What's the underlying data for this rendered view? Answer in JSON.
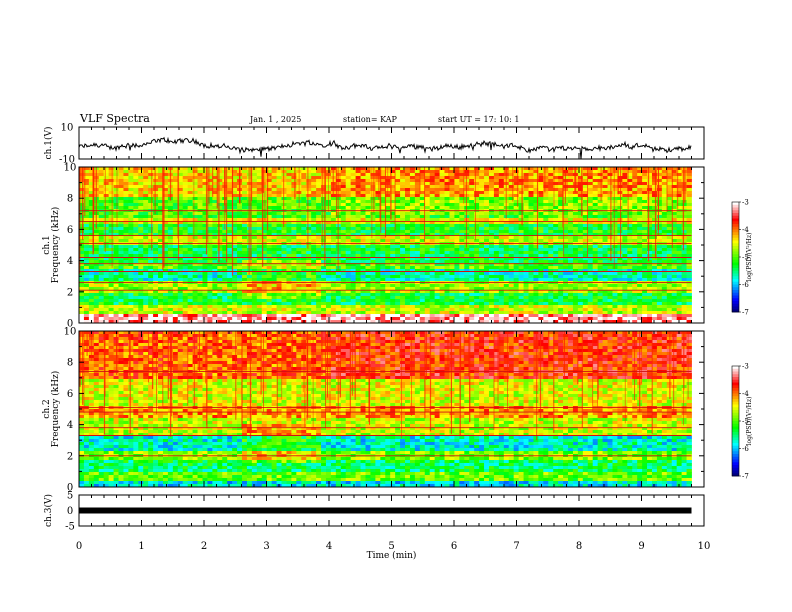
{
  "header": {
    "title": "VLF Spectra",
    "date": "Jan. 1 , 2025",
    "station": "station= KAP",
    "start": "start  UT =   17: 10: 1"
  },
  "chart_data": [
    {
      "type": "line",
      "name": "ch1-waveform",
      "ylabel": "ch.1(V)",
      "ylim": [
        -10,
        10
      ],
      "ytick_labels": [
        "10",
        "-10"
      ],
      "xlim": [
        0,
        10
      ],
      "note": "voltage trace, values roughly between -10 and 4 V"
    },
    {
      "type": "heatmap",
      "name": "ch1-spectrogram",
      "ylabel": "ch.1\nFrequency (kHz)",
      "ylabel_line1": "ch.1",
      "ylabel_line2": "Frequency (kHz)",
      "ylim": [
        0,
        10
      ],
      "ytick_labels": [
        "0",
        "2",
        "4",
        "6",
        "8",
        "10"
      ],
      "xlim": [
        0,
        10
      ],
      "data_end_min": 9.8,
      "colorbar": {
        "label": "log(PSD)(V²/Hz)",
        "range": [
          -7,
          -3
        ],
        "tick_labels": [
          "-3",
          "-4",
          "-5",
          "-6",
          "-7"
        ],
        "colors": [
          "#000060",
          "#0000ff",
          "#00ffff",
          "#00ff00",
          "#ffff00",
          "#ff0000",
          "#ffffff"
        ]
      },
      "bands_khz": [
        {
          "from": 0.0,
          "to": 0.5,
          "level": -3.2
        },
        {
          "from": 0.5,
          "to": 1.2,
          "level": -4.6
        },
        {
          "from": 1.2,
          "to": 1.9,
          "level": -5.3
        },
        {
          "from": 1.9,
          "to": 2.6,
          "level": -4.7
        },
        {
          "from": 2.6,
          "to": 3.4,
          "level": -5.6
        },
        {
          "from": 3.4,
          "to": 3.9,
          "level": -5.0
        },
        {
          "from": 3.9,
          "to": 5.0,
          "level": -5.3
        },
        {
          "from": 5.0,
          "to": 5.5,
          "level": -4.6
        },
        {
          "from": 5.5,
          "to": 6.4,
          "level": -5.2
        },
        {
          "from": 6.4,
          "to": 6.8,
          "level": -4.5
        },
        {
          "from": 6.8,
          "to": 8.0,
          "level": -5.0
        },
        {
          "from": 8.0,
          "to": 10.0,
          "level": -4.3
        }
      ],
      "lines_khz": [
        2.1,
        2.6,
        3.3,
        3.8,
        4.2,
        5.1,
        5.6,
        6.5,
        7.2
      ]
    },
    {
      "type": "heatmap",
      "name": "ch2-spectrogram",
      "ylabel": "ch.2\nFrequency (kHz)",
      "ylabel_line1": "ch.2",
      "ylabel_line2": "Frequency (kHz)",
      "ylim": [
        0,
        10
      ],
      "ytick_labels": [
        "0",
        "2",
        "4",
        "6",
        "8",
        "10"
      ],
      "xlim": [
        0,
        10
      ],
      "data_end_min": 9.8,
      "colorbar": {
        "label": "log(PSD)(V²/Hz)",
        "range": [
          -7,
          -3
        ],
        "tick_labels": [
          "-3",
          "-4",
          "-5",
          "-6",
          "-7"
        ],
        "colors": [
          "#000060",
          "#0000ff",
          "#00ffff",
          "#00ff00",
          "#ffff00",
          "#ff0000",
          "#ffffff"
        ]
      },
      "bands_khz": [
        {
          "from": 0.0,
          "to": 0.4,
          "level": -5.8
        },
        {
          "from": 0.4,
          "to": 1.0,
          "level": -4.9
        },
        {
          "from": 1.0,
          "to": 1.8,
          "level": -5.4
        },
        {
          "from": 1.8,
          "to": 2.4,
          "level": -4.8
        },
        {
          "from": 2.4,
          "to": 3.2,
          "level": -5.7
        },
        {
          "from": 3.2,
          "to": 4.5,
          "level": -4.6
        },
        {
          "from": 4.5,
          "to": 5.1,
          "level": -4.1
        },
        {
          "from": 5.1,
          "to": 7.0,
          "level": -4.5
        },
        {
          "from": 7.0,
          "to": 10.0,
          "level": -3.9
        }
      ],
      "lines_khz": [
        2.0,
        3.3,
        3.8,
        4.8,
        5.1,
        7.4
      ]
    },
    {
      "type": "line",
      "name": "ch3-trace",
      "ylabel": "ch.3(V)",
      "ylim": [
        -5,
        5
      ],
      "ytick_labels": [
        "5",
        "0",
        "-5"
      ],
      "xlim": [
        0,
        10
      ],
      "constant_value": 0,
      "data_end_min": 9.8
    }
  ],
  "xaxis": {
    "label": "Time  (min)",
    "tick_labels": [
      "0",
      "1",
      "2",
      "3",
      "4",
      "5",
      "6",
      "7",
      "8",
      "9",
      "10"
    ]
  }
}
